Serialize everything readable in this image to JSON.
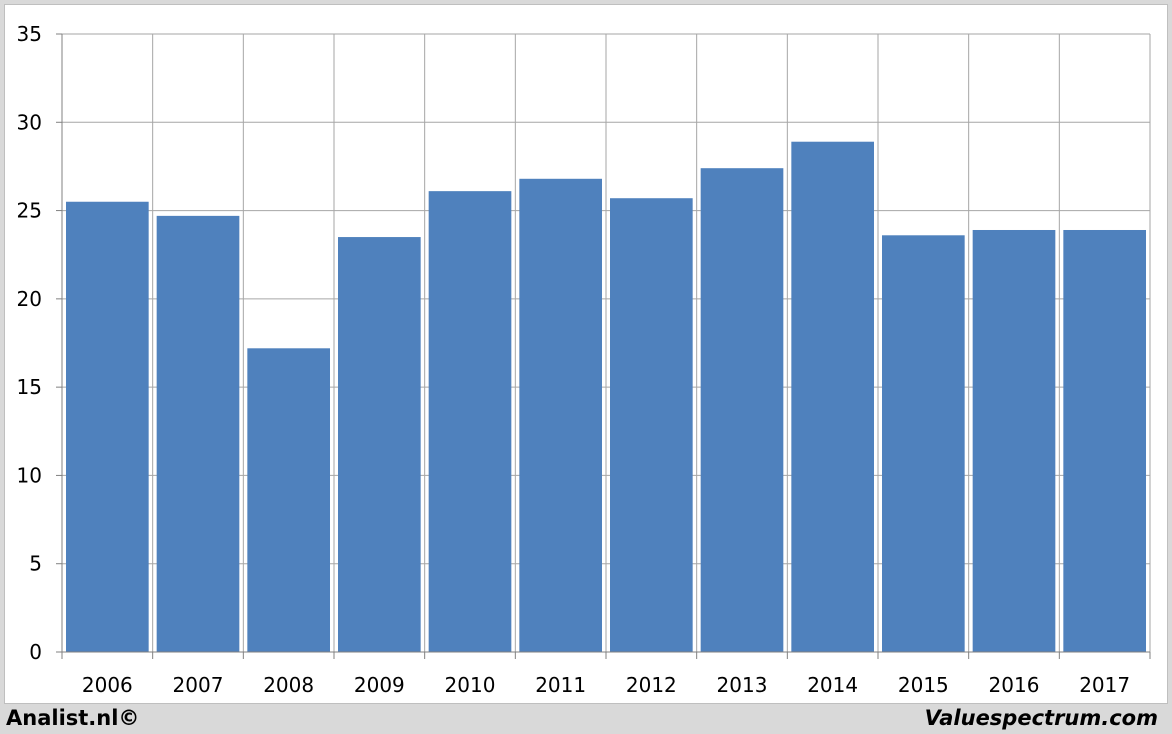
{
  "chart_data": {
    "type": "bar",
    "categories": [
      "2006",
      "2007",
      "2008",
      "2009",
      "2010",
      "2011",
      "2012",
      "2013",
      "2014",
      "2015",
      "2016",
      "2017"
    ],
    "values": [
      25.5,
      24.7,
      17.2,
      23.5,
      26.1,
      26.8,
      25.7,
      27.4,
      28.9,
      23.6,
      23.9,
      23.9
    ],
    "ylim": [
      0,
      35
    ],
    "yticks": [
      0,
      5,
      10,
      15,
      20,
      25,
      30,
      35
    ],
    "grid": true,
    "bar_color": "#4f81bd",
    "grid_color": "#a6a6a6",
    "title": "",
    "xlabel": "",
    "ylabel": ""
  },
  "footer": {
    "left": "Analist.nl©",
    "right": "Valuespectrum.com"
  }
}
